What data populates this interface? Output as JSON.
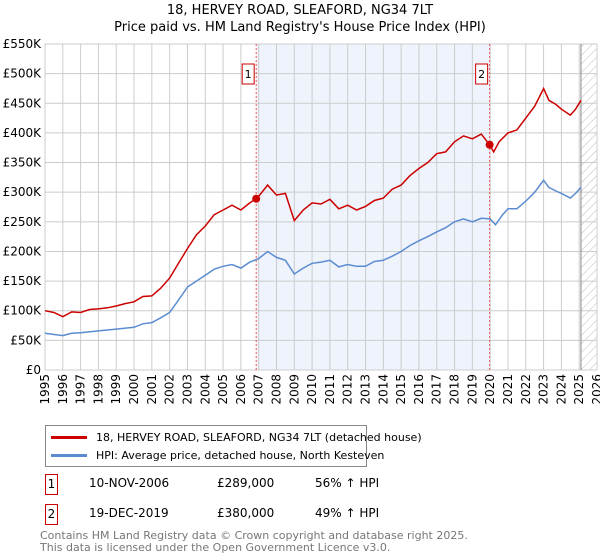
{
  "title": "18, HERVEY ROAD, SLEAFORD, NG34 7LT",
  "subtitle": "Price paid vs. HM Land Registry's House Price Index (HPI)",
  "chart_data": {
    "type": "line",
    "title": "18, HERVEY ROAD, SLEAFORD, NG34 7LT — Price paid vs. HM Land Registry's House Price Index (HPI)",
    "xlim": [
      1995,
      2026
    ],
    "ylim": [
      0,
      550000
    ],
    "x_ticks": [
      "1995",
      "1996",
      "1997",
      "1998",
      "1999",
      "2000",
      "2001",
      "2002",
      "2003",
      "2004",
      "2005",
      "2006",
      "2007",
      "2008",
      "2009",
      "2010",
      "2011",
      "2012",
      "2013",
      "2014",
      "2015",
      "2016",
      "2017",
      "2018",
      "2019",
      "2020",
      "2021",
      "2022",
      "2023",
      "2024",
      "2025",
      "2026"
    ],
    "y_ticks": [
      "£0",
      "£50K",
      "£100K",
      "£150K",
      "£200K",
      "£250K",
      "£300K",
      "£350K",
      "£400K",
      "£450K",
      "£500K",
      "£550K"
    ],
    "grid": true,
    "shaded_range": [
      2006.86,
      2019.97
    ],
    "forecast_hatch_from": 2025.1,
    "series": [
      {
        "name": "18, HERVEY ROAD, SLEAFORD, NG34 7LT (detached house)",
        "color": "#cc0000",
        "x": [
          1995,
          1995.5,
          1996,
          1996.5,
          1997,
          1997.5,
          1998,
          1998.5,
          1999,
          1999.5,
          2000,
          2000.5,
          2001,
          2001.5,
          2002,
          2002.5,
          2003,
          2003.5,
          2004,
          2004.5,
          2005,
          2005.5,
          2006,
          2006.5,
          2006.86,
          2007,
          2007.5,
          2008,
          2008.5,
          2009,
          2009.5,
          2010,
          2010.5,
          2011,
          2011.5,
          2012,
          2012.5,
          2013,
          2013.5,
          2014,
          2014.5,
          2015,
          2015.5,
          2016,
          2016.5,
          2017,
          2017.5,
          2018,
          2018.5,
          2019,
          2019.5,
          2019.97,
          2020.2,
          2020.5,
          2021,
          2021.5,
          2022,
          2022.5,
          2023,
          2023.3,
          2023.7,
          2024,
          2024.5,
          2024.8,
          2025.1
        ],
        "y": [
          100000,
          97000,
          90000,
          98000,
          97000,
          102000,
          103000,
          105000,
          108000,
          112000,
          115000,
          124000,
          125000,
          138000,
          155000,
          180000,
          205000,
          228000,
          243000,
          262000,
          270000,
          278000,
          270000,
          282000,
          289000,
          293000,
          312000,
          295000,
          298000,
          252000,
          270000,
          282000,
          280000,
          288000,
          272000,
          278000,
          270000,
          276000,
          286000,
          290000,
          305000,
          312000,
          328000,
          340000,
          350000,
          365000,
          368000,
          385000,
          395000,
          390000,
          398000,
          380000,
          368000,
          385000,
          400000,
          405000,
          425000,
          445000,
          475000,
          455000,
          448000,
          440000,
          430000,
          440000,
          455000
        ]
      },
      {
        "name": "HPI: Average price, detached house, North Kesteven",
        "color": "#5b8bd0",
        "x": [
          1995,
          1996,
          1996.5,
          1997,
          1998,
          1999,
          2000,
          2000.5,
          2001,
          2001.5,
          2002,
          2002.5,
          2003,
          2003.5,
          2004,
          2004.5,
          2005,
          2005.5,
          2006,
          2006.5,
          2007,
          2007.5,
          2008,
          2008.5,
          2009,
          2009.5,
          2010,
          2010.5,
          2011,
          2011.5,
          2012,
          2012.5,
          2013,
          2013.5,
          2014,
          2014.5,
          2015,
          2015.5,
          2016,
          2016.5,
          2017,
          2017.5,
          2018,
          2018.5,
          2019,
          2019.5,
          2020,
          2020.3,
          2020.7,
          2021,
          2021.5,
          2022,
          2022.5,
          2023,
          2023.3,
          2023.7,
          2024,
          2024.5,
          2024.8,
          2025.1
        ],
        "y": [
          62000,
          58000,
          62000,
          63000,
          66000,
          69000,
          72000,
          78000,
          80000,
          88000,
          97000,
          118000,
          140000,
          150000,
          160000,
          170000,
          175000,
          178000,
          172000,
          182000,
          188000,
          200000,
          190000,
          185000,
          162000,
          172000,
          180000,
          182000,
          185000,
          174000,
          178000,
          175000,
          175000,
          183000,
          185000,
          192000,
          200000,
          210000,
          218000,
          225000,
          233000,
          240000,
          250000,
          255000,
          250000,
          256000,
          255000,
          245000,
          262000,
          272000,
          272000,
          285000,
          300000,
          320000,
          308000,
          302000,
          298000,
          290000,
          298000,
          308000
        ]
      }
    ],
    "sales": [
      {
        "label": "1",
        "x": 2006.86,
        "y": 289000
      },
      {
        "label": "2",
        "x": 2019.97,
        "y": 380000
      }
    ],
    "legend_position": "below"
  },
  "legend": {
    "items": [
      "18, HERVEY ROAD, SLEAFORD, NG34 7LT (detached house)",
      "HPI: Average price, detached house, North Kesteven"
    ]
  },
  "sales_table": [
    {
      "num": "1",
      "date": "10-NOV-2006",
      "price": "£289,000",
      "hpi": "56% ↑ HPI"
    },
    {
      "num": "2",
      "date": "19-DEC-2019",
      "price": "£380,000",
      "hpi": "49% ↑ HPI"
    }
  ],
  "footer": {
    "line1": "Contains HM Land Registry data © Crown copyright and database right 2025.",
    "line2": "This data is licensed under the Open Government Licence v3.0."
  }
}
